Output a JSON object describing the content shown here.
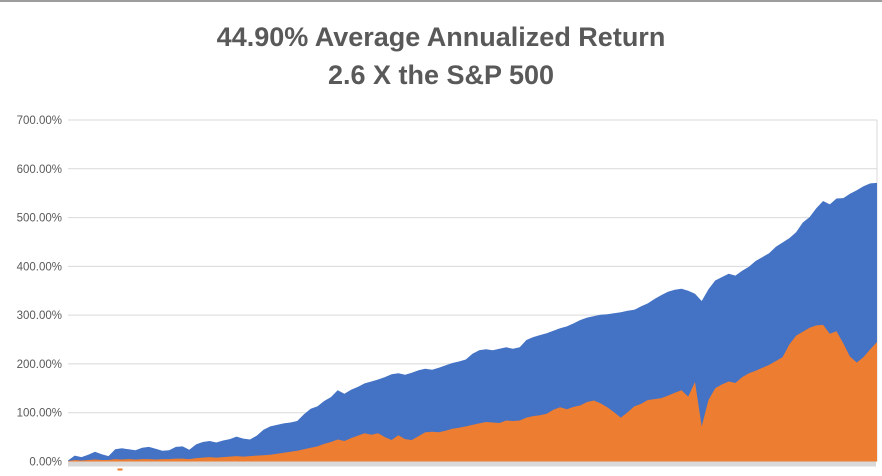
{
  "header": {
    "title_line1": "44.90% Average Annualized Return",
    "title_line2": "2.6 X the S&P 500"
  },
  "colors": {
    "series_blue": "#4472C4",
    "series_orange": "#ED7D31",
    "gridline": "#D9D9D9",
    "axis_band": "#D9D9D9",
    "title_text": "#595959",
    "tick_text": "#595959",
    "top_rule": "#9D9D9D",
    "background": "#FFFFFF"
  },
  "chart_data": {
    "type": "area",
    "title": "44.90% Average Annualized Return 2.6 X the S&P 500",
    "xlabel": "",
    "ylabel": "",
    "units": "percent cumulative return",
    "ylim": [
      0,
      700
    ],
    "grid": true,
    "legend": "none",
    "x_axis": {
      "labels_visible": false
    },
    "y_ticks": [
      {
        "label": "700.00%",
        "value": 700
      },
      {
        "label": "600.00%",
        "value": 600
      },
      {
        "label": "500.00%",
        "value": 500
      },
      {
        "label": "400.00%",
        "value": 400
      },
      {
        "label": "300.00%",
        "value": 300
      },
      {
        "label": "200.00%",
        "value": 200
      },
      {
        "label": "100.00%",
        "value": 100
      },
      {
        "label": "0.00%",
        "value": 0
      }
    ],
    "series": [
      {
        "name": "series-1-blue",
        "color": "#4472C4",
        "values": [
          2,
          12,
          9,
          14,
          20,
          15,
          11,
          25,
          27,
          25,
          23,
          28,
          30,
          26,
          22,
          23,
          30,
          31,
          24,
          35,
          40,
          42,
          39,
          43,
          46,
          51,
          47,
          45,
          53,
          65,
          72,
          75,
          78,
          80,
          83,
          97,
          108,
          113,
          124,
          132,
          146,
          139,
          147,
          153,
          160,
          164,
          168,
          173,
          179,
          181,
          178,
          182,
          187,
          190,
          188,
          192,
          197,
          202,
          205,
          209,
          221,
          228,
          230,
          228,
          231,
          234,
          231,
          234,
          249,
          255,
          259,
          263,
          268,
          273,
          277,
          283,
          290,
          295,
          298,
          301,
          302,
          304,
          306,
          309,
          311,
          318,
          324,
          333,
          341,
          348,
          352,
          354,
          350,
          344,
          329,
          353,
          371,
          378,
          385,
          381,
          391,
          399,
          411,
          419,
          427,
          440,
          449,
          458,
          470,
          490,
          501,
          519,
          534,
          527,
          539,
          540,
          549,
          556,
          564,
          570,
          571
        ]
      },
      {
        "name": "series-2-orange",
        "color": "#ED7D31",
        "values": [
          1,
          3,
          2,
          3,
          4,
          3,
          3,
          5,
          4,
          5,
          4,
          5,
          5,
          4,
          5,
          5,
          6,
          6,
          5,
          7,
          8,
          9,
          8,
          9,
          10,
          11,
          10,
          11,
          12,
          13,
          14,
          16,
          18,
          20,
          22,
          25,
          28,
          31,
          36,
          40,
          45,
          42,
          48,
          53,
          58,
          55,
          58,
          50,
          44,
          54,
          46,
          44,
          52,
          60,
          61,
          60,
          63,
          67,
          69,
          72,
          75,
          78,
          81,
          80,
          79,
          84,
          83,
          84,
          90,
          93,
          95,
          98,
          106,
          111,
          107,
          112,
          115,
          122,
          125,
          119,
          111,
          101,
          90,
          101,
          113,
          118,
          126,
          128,
          130,
          135,
          141,
          146,
          133,
          163,
          72,
          126,
          150,
          158,
          164,
          161,
          173,
          181,
          186,
          192,
          198,
          206,
          214,
          240,
          258,
          266,
          274,
          279,
          280,
          262,
          267,
          242,
          215,
          203,
          214,
          230,
          245
        ]
      }
    ]
  }
}
